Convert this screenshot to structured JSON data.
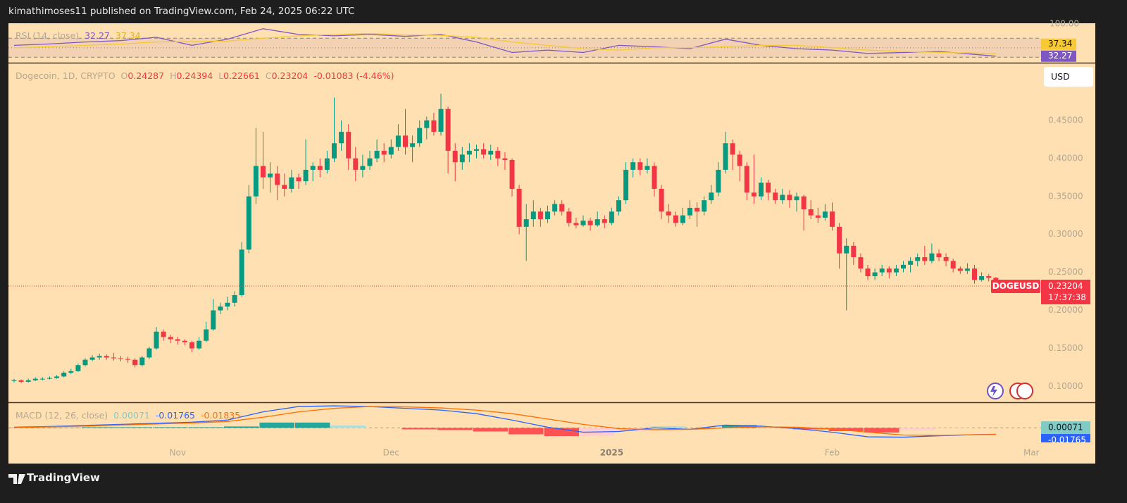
{
  "header": "kimathimoses11 published on TradingView.com, Feb 24, 2025 06:22 UTC",
  "footer": "TradingView",
  "chart_data": [
    {
      "type": "line",
      "legend": "RSI (14, close)",
      "x": [
        0,
        5,
        10,
        15,
        20,
        25,
        30,
        35,
        40,
        45,
        50,
        55,
        60,
        65,
        70,
        75,
        80,
        85,
        90,
        95,
        100,
        105,
        110,
        115,
        120,
        125,
        130,
        135,
        138
      ],
      "series": [
        {
          "color": "#7e57c2",
          "values": [
            55,
            58,
            62,
            65,
            72,
            55,
            68,
            90,
            78,
            75,
            78,
            74,
            78,
            62,
            40,
            45,
            40,
            55,
            52,
            48,
            68,
            55,
            48,
            45,
            38,
            40,
            42,
            36,
            32.27
          ]
        },
        {
          "color": "#f7c934",
          "values": [
            50,
            52,
            55,
            58,
            62,
            63,
            64,
            70,
            75,
            78,
            80,
            77,
            76,
            72,
            62,
            55,
            48,
            45,
            50,
            50,
            52,
            55,
            55,
            50,
            45,
            42,
            40,
            39,
            37.34
          ]
        }
      ],
      "bands": [
        70,
        50,
        30
      ],
      "ylim": [
        20,
        100
      ],
      "yticks": [
        {
          "value": 100,
          "label": "100.00"
        }
      ]
    },
    {
      "type": "candlestick",
      "title": "Dogecoin, 1D, CRYPTO",
      "ohlc_labels": [
        "O",
        "H",
        "L",
        "C"
      ],
      "change": "-0.01083 (-4.46%)",
      "symbol": "DOGEUSD",
      "countdown": "17:37:38",
      "currency": "USD",
      "up_color": "#089981",
      "down_color": "#f23645",
      "ohlc": [
        [
          0.107,
          0.11,
          0.105,
          0.108
        ],
        [
          0.108,
          0.109,
          0.104,
          0.106
        ],
        [
          0.106,
          0.11,
          0.105,
          0.108
        ],
        [
          0.108,
          0.112,
          0.107,
          0.11
        ],
        [
          0.11,
          0.112,
          0.108,
          0.11
        ],
        [
          0.11,
          0.113,
          0.109,
          0.111
        ],
        [
          0.111,
          0.115,
          0.11,
          0.113
        ],
        [
          0.113,
          0.12,
          0.112,
          0.118
        ],
        [
          0.118,
          0.123,
          0.116,
          0.12
        ],
        [
          0.12,
          0.13,
          0.119,
          0.128
        ],
        [
          0.128,
          0.137,
          0.126,
          0.135
        ],
        [
          0.135,
          0.141,
          0.133,
          0.138
        ],
        [
          0.138,
          0.143,
          0.135,
          0.14
        ],
        [
          0.14,
          0.142,
          0.135,
          0.138
        ],
        [
          0.138,
          0.144,
          0.134,
          0.137
        ],
        [
          0.137,
          0.14,
          0.133,
          0.136
        ],
        [
          0.136,
          0.139,
          0.131,
          0.135
        ],
        [
          0.135,
          0.137,
          0.125,
          0.128
        ],
        [
          0.128,
          0.14,
          0.126,
          0.138
        ],
        [
          0.138,
          0.152,
          0.136,
          0.15
        ],
        [
          0.15,
          0.178,
          0.148,
          0.172
        ],
        [
          0.172,
          0.175,
          0.16,
          0.165
        ],
        [
          0.165,
          0.168,
          0.157,
          0.162
        ],
        [
          0.162,
          0.165,
          0.155,
          0.16
        ],
        [
          0.16,
          0.162,
          0.154,
          0.158
        ],
        [
          0.158,
          0.16,
          0.145,
          0.15
        ],
        [
          0.15,
          0.165,
          0.148,
          0.16
        ],
        [
          0.16,
          0.185,
          0.158,
          0.175
        ],
        [
          0.175,
          0.215,
          0.173,
          0.2
        ],
        [
          0.2,
          0.21,
          0.195,
          0.205
        ],
        [
          0.205,
          0.218,
          0.2,
          0.21
        ],
        [
          0.21,
          0.225,
          0.205,
          0.22
        ],
        [
          0.22,
          0.29,
          0.218,
          0.28
        ],
        [
          0.28,
          0.365,
          0.275,
          0.35
        ],
        [
          0.35,
          0.44,
          0.34,
          0.39
        ],
        [
          0.39,
          0.435,
          0.36,
          0.375
        ],
        [
          0.375,
          0.395,
          0.355,
          0.38
        ],
        [
          0.38,
          0.39,
          0.345,
          0.365
        ],
        [
          0.365,
          0.38,
          0.35,
          0.36
        ],
        [
          0.36,
          0.385,
          0.355,
          0.375
        ],
        [
          0.375,
          0.38,
          0.36,
          0.37
        ],
        [
          0.37,
          0.425,
          0.365,
          0.385
        ],
        [
          0.385,
          0.395,
          0.37,
          0.39
        ],
        [
          0.39,
          0.4,
          0.375,
          0.385
        ],
        [
          0.385,
          0.41,
          0.38,
          0.4
        ],
        [
          0.4,
          0.48,
          0.395,
          0.42
        ],
        [
          0.42,
          0.45,
          0.41,
          0.435
        ],
        [
          0.435,
          0.445,
          0.385,
          0.4
        ],
        [
          0.4,
          0.415,
          0.37,
          0.385
        ],
        [
          0.385,
          0.405,
          0.375,
          0.39
        ],
        [
          0.39,
          0.41,
          0.385,
          0.4
        ],
        [
          0.4,
          0.425,
          0.395,
          0.41
        ],
        [
          0.41,
          0.42,
          0.395,
          0.405
        ],
        [
          0.405,
          0.425,
          0.4,
          0.415
        ],
        [
          0.415,
          0.445,
          0.41,
          0.43
        ],
        [
          0.43,
          0.465,
          0.405,
          0.415
        ],
        [
          0.415,
          0.43,
          0.395,
          0.42
        ],
        [
          0.42,
          0.45,
          0.415,
          0.44
        ],
        [
          0.44,
          0.455,
          0.425,
          0.45
        ],
        [
          0.45,
          0.46,
          0.43,
          0.435
        ],
        [
          0.435,
          0.485,
          0.43,
          0.465
        ],
        [
          0.465,
          0.468,
          0.38,
          0.41
        ],
        [
          0.41,
          0.42,
          0.37,
          0.395
        ],
        [
          0.395,
          0.415,
          0.385,
          0.405
        ],
        [
          0.405,
          0.42,
          0.395,
          0.41
        ],
        [
          0.41,
          0.418,
          0.4,
          0.412
        ],
        [
          0.412,
          0.42,
          0.4,
          0.405
        ],
        [
          0.405,
          0.418,
          0.398,
          0.41
        ],
        [
          0.41,
          0.415,
          0.39,
          0.4
        ],
        [
          0.4,
          0.408,
          0.385,
          0.398
        ],
        [
          0.398,
          0.4,
          0.35,
          0.36
        ],
        [
          0.36,
          0.365,
          0.3,
          0.31
        ],
        [
          0.31,
          0.34,
          0.265,
          0.32
        ],
        [
          0.32,
          0.345,
          0.31,
          0.33
        ],
        [
          0.33,
          0.335,
          0.31,
          0.32
        ],
        [
          0.32,
          0.338,
          0.315,
          0.33
        ],
        [
          0.33,
          0.345,
          0.325,
          0.34
        ],
        [
          0.34,
          0.345,
          0.325,
          0.33
        ],
        [
          0.33,
          0.335,
          0.31,
          0.315
        ],
        [
          0.315,
          0.322,
          0.308,
          0.312
        ],
        [
          0.312,
          0.325,
          0.31,
          0.318
        ],
        [
          0.318,
          0.322,
          0.305,
          0.312
        ],
        [
          0.312,
          0.33,
          0.31,
          0.32
        ],
        [
          0.32,
          0.325,
          0.308,
          0.315
        ],
        [
          0.315,
          0.335,
          0.312,
          0.33
        ],
        [
          0.33,
          0.35,
          0.325,
          0.345
        ],
        [
          0.345,
          0.395,
          0.34,
          0.385
        ],
        [
          0.385,
          0.4,
          0.375,
          0.395
        ],
        [
          0.395,
          0.4,
          0.378,
          0.385
        ],
        [
          0.385,
          0.4,
          0.38,
          0.39
        ],
        [
          0.39,
          0.395,
          0.35,
          0.36
        ],
        [
          0.36,
          0.365,
          0.32,
          0.33
        ],
        [
          0.33,
          0.34,
          0.315,
          0.325
        ],
        [
          0.325,
          0.33,
          0.31,
          0.315
        ],
        [
          0.315,
          0.335,
          0.312,
          0.325
        ],
        [
          0.325,
          0.345,
          0.32,
          0.335
        ],
        [
          0.335,
          0.342,
          0.31,
          0.33
        ],
        [
          0.33,
          0.35,
          0.325,
          0.345
        ],
        [
          0.345,
          0.365,
          0.34,
          0.355
        ],
        [
          0.355,
          0.395,
          0.35,
          0.385
        ],
        [
          0.385,
          0.435,
          0.38,
          0.42
        ],
        [
          0.42,
          0.425,
          0.385,
          0.405
        ],
        [
          0.405,
          0.41,
          0.37,
          0.39
        ],
        [
          0.39,
          0.395,
          0.345,
          0.355
        ],
        [
          0.355,
          0.405,
          0.34,
          0.35
        ],
        [
          0.35,
          0.375,
          0.345,
          0.368
        ],
        [
          0.368,
          0.372,
          0.345,
          0.355
        ],
        [
          0.355,
          0.36,
          0.34,
          0.345
        ],
        [
          0.345,
          0.36,
          0.34,
          0.352
        ],
        [
          0.352,
          0.358,
          0.335,
          0.345
        ],
        [
          0.345,
          0.355,
          0.33,
          0.35
        ],
        [
          0.35,
          0.352,
          0.305,
          0.333
        ],
        [
          0.333,
          0.345,
          0.32,
          0.325
        ],
        [
          0.325,
          0.335,
          0.315,
          0.322
        ],
        [
          0.322,
          0.34,
          0.318,
          0.33
        ],
        [
          0.33,
          0.342,
          0.305,
          0.31
        ],
        [
          0.31,
          0.315,
          0.255,
          0.275
        ],
        [
          0.275,
          0.295,
          0.2,
          0.285
        ],
        [
          0.285,
          0.29,
          0.26,
          0.27
        ],
        [
          0.27,
          0.275,
          0.25,
          0.255
        ],
        [
          0.255,
          0.26,
          0.24,
          0.245
        ],
        [
          0.245,
          0.255,
          0.24,
          0.25
        ],
        [
          0.25,
          0.26,
          0.245,
          0.255
        ],
        [
          0.255,
          0.258,
          0.242,
          0.25
        ],
        [
          0.25,
          0.26,
          0.245,
          0.255
        ],
        [
          0.255,
          0.265,
          0.25,
          0.26
        ],
        [
          0.26,
          0.27,
          0.25,
          0.265
        ],
        [
          0.265,
          0.275,
          0.258,
          0.27
        ],
        [
          0.27,
          0.285,
          0.26,
          0.265
        ],
        [
          0.265,
          0.288,
          0.262,
          0.275
        ],
        [
          0.275,
          0.28,
          0.265,
          0.27
        ],
        [
          0.27,
          0.275,
          0.258,
          0.265
        ],
        [
          0.265,
          0.268,
          0.25,
          0.255
        ],
        [
          0.255,
          0.258,
          0.248,
          0.252
        ],
        [
          0.252,
          0.262,
          0.248,
          0.255
        ],
        [
          0.255,
          0.26,
          0.235,
          0.24
        ],
        [
          0.24,
          0.25,
          0.238,
          0.245
        ],
        [
          0.245,
          0.248,
          0.238,
          0.24287
        ],
        [
          0.24287,
          0.24394,
          0.22661,
          0.23204
        ]
      ],
      "ylim": [
        0.08,
        0.525
      ],
      "yticks": [
        {
          "value": 0.1,
          "label": "0.10000"
        },
        {
          "value": 0.15,
          "label": "0.15000"
        },
        {
          "value": 0.2,
          "label": "0.20000"
        },
        {
          "value": 0.25,
          "label": "0.25000"
        },
        {
          "value": 0.3,
          "label": "0.30000"
        },
        {
          "value": 0.35,
          "label": "0.35000"
        },
        {
          "value": 0.4,
          "label": "0.40000"
        },
        {
          "value": 0.45,
          "label": "0.45000"
        }
      ],
      "xticks": [
        {
          "value": 23,
          "label": "Nov"
        },
        {
          "value": 53,
          "label": "Dec"
        },
        {
          "value": 84,
          "label": "2025"
        },
        {
          "value": 115,
          "label": "Feb"
        },
        {
          "value": 143,
          "label": "Mar"
        }
      ]
    },
    {
      "type": "macd",
      "legend": "MACD (12, 26, close)",
      "x": [
        0,
        5,
        10,
        15,
        20,
        25,
        30,
        35,
        40,
        45,
        50,
        55,
        60,
        65,
        70,
        75,
        80,
        85,
        90,
        95,
        100,
        105,
        110,
        115,
        120,
        125,
        130,
        135,
        138
      ],
      "histogram": [
        0.001,
        0.001,
        0.002,
        0.002,
        0.002,
        0.002,
        0.004,
        0.015,
        0.015,
        0.007,
        0.0,
        -0.004,
        -0.006,
        -0.01,
        -0.018,
        -0.023,
        -0.022,
        -0.008,
        0.005,
        0.0,
        0.008,
        0.002,
        -0.004,
        -0.009,
        -0.013,
        -0.006,
        -0.001,
        0.0,
        0.00071
      ],
      "histogram_color": "#80cbc4",
      "series": [
        {
          "color": "#2962ff",
          "values": [
            0.002,
            0.004,
            0.007,
            0.01,
            0.013,
            0.016,
            0.022,
            0.045,
            0.06,
            0.062,
            0.06,
            0.055,
            0.05,
            0.04,
            0.022,
            0.002,
            -0.012,
            -0.01,
            0.0,
            -0.004,
            0.008,
            0.005,
            -0.002,
            -0.012,
            -0.025,
            -0.026,
            -0.022,
            -0.019,
            -0.01765
          ]
        },
        {
          "color": "#ff6d00",
          "values": [
            0.001,
            0.003,
            0.005,
            0.008,
            0.011,
            0.014,
            0.018,
            0.03,
            0.045,
            0.055,
            0.06,
            0.059,
            0.056,
            0.05,
            0.04,
            0.025,
            0.01,
            -0.002,
            -0.005,
            -0.004,
            0.0,
            0.003,
            0.002,
            -0.003,
            -0.012,
            -0.02,
            -0.021,
            -0.019,
            -0.01835
          ]
        }
      ],
      "ylim": [
        -0.1,
        0.07
      ]
    }
  ]
}
